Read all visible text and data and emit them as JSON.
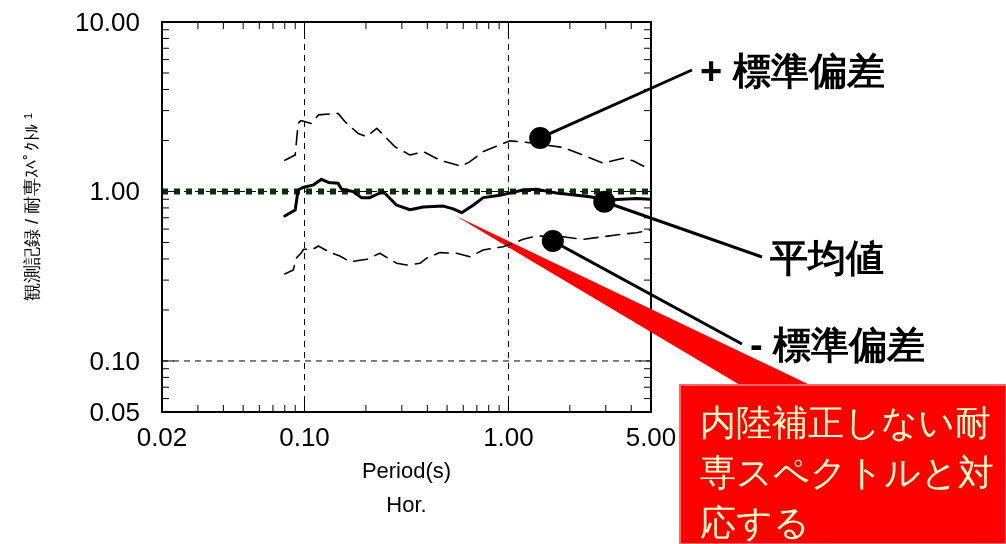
{
  "chart_data": {
    "type": "line",
    "xlabel": "Period(s)",
    "ylabel": "観測記録 / 耐専ｽﾍﾟｸﾄﾙ $^{1}$",
    "log": "xy",
    "grid": true,
    "xlim": [
      0.02,
      5
    ],
    "ylim": [
      0.05,
      10
    ],
    "xticks": [
      {
        "value": 0.02,
        "label": "0.02"
      },
      {
        "value": 0.1,
        "label": "0.10"
      },
      {
        "value": 1,
        "label": "1.00"
      },
      {
        "value": 5,
        "label": "5.00"
      }
    ],
    "yticks": [
      {
        "value": 0.05,
        "label": "0.05"
      },
      {
        "value": 0.1,
        "label": "0.10"
      },
      {
        "value": 1,
        "label": "1.00"
      },
      {
        "value": 10,
        "label": "10.00"
      }
    ],
    "series": [
      {
        "color": "#000000",
        "line_style": "dashed",
        "x": [
          0.08,
          0.09,
          0.093,
          0.096,
          0.108,
          0.117,
          0.146,
          0.158,
          0.183,
          0.202,
          0.226,
          0.248,
          0.277,
          0.329,
          0.382,
          0.461,
          0.589,
          0.647,
          0.752,
          0.942,
          1.02,
          1.27,
          1.85,
          2.32,
          2.91,
          3.65,
          4.08,
          4.93
        ],
        "values": [
          1.53,
          1.64,
          2.52,
          2.62,
          2.52,
          2.83,
          2.89,
          2.58,
          2.2,
          2.11,
          2.36,
          2.11,
          1.84,
          1.64,
          1.72,
          1.53,
          1.41,
          1.5,
          1.72,
          1.92,
          1.99,
          1.94,
          1.82,
          1.64,
          1.47,
          1.57,
          1.52,
          1.35
        ]
      },
      {
        "color": "#000000",
        "line_style": "solid",
        "x": [
          0.08,
          0.09,
          0.093,
          0.099,
          0.11,
          0.121,
          0.131,
          0.146,
          0.152,
          0.173,
          0.19,
          0.209,
          0.243,
          0.283,
          0.329,
          0.382,
          0.479,
          0.536,
          0.589,
          0.671,
          0.752,
          0.908,
          1.18,
          1.37,
          1.72,
          2.51,
          3.03,
          4.25,
          4.93
        ],
        "values": [
          0.717,
          0.778,
          1.02,
          1.06,
          1.09,
          1.18,
          1.13,
          1.12,
          1.03,
          1.0,
          0.92,
          0.92,
          1.0,
          0.83,
          0.78,
          0.81,
          0.82,
          0.79,
          0.75,
          0.83,
          0.92,
          0.95,
          1.02,
          1.03,
          0.98,
          0.93,
          0.89,
          0.91,
          0.9
        ]
      },
      {
        "color": "#000000",
        "line_style": "dashed",
        "x": [
          0.08,
          0.088,
          0.091,
          0.096,
          0.099,
          0.11,
          0.117,
          0.131,
          0.149,
          0.167,
          0.202,
          0.234,
          0.283,
          0.317,
          0.368,
          0.397,
          0.461,
          0.557,
          0.647,
          0.752,
          0.942,
          1.18,
          1.37,
          1.85,
          2.32,
          2.91,
          3.65,
          4.25,
          4.93
        ],
        "values": [
          0.326,
          0.344,
          0.404,
          0.432,
          0.456,
          0.456,
          0.477,
          0.442,
          0.416,
          0.385,
          0.398,
          0.432,
          0.377,
          0.368,
          0.377,
          0.404,
          0.436,
          0.432,
          0.412,
          0.452,
          0.472,
          0.522,
          0.546,
          0.541,
          0.522,
          0.541,
          0.561,
          0.571,
          0.593
        ]
      }
    ],
    "ref_lines": [
      {
        "axis": "y",
        "value": 1,
        "color": "#003300",
        "line_style": "dotted"
      }
    ],
    "annotations": [
      {
        "text": "+ 標準偏差",
        "x": 1.43,
        "y": 2.07
      },
      {
        "text": "平均値",
        "x": 2.95,
        "y": 0.87
      },
      {
        "text": "- 標準偏差",
        "x": 1.65,
        "y": 0.51
      },
      "Hor.",
      {
        "text": "内陸補正しない耐専スペクトルと対応する",
        "x": 0.55,
        "y": 0.78
      }
    ]
  }
}
